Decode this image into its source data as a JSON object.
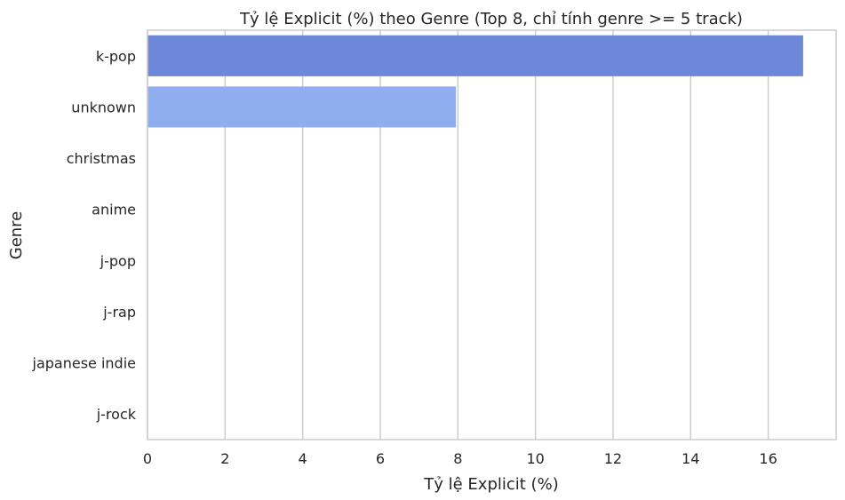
{
  "chart_data": {
    "type": "bar",
    "orientation": "horizontal",
    "title": "Tỷ lệ Explicit (%) theo Genre (Top 8, chỉ tính genre >= 5 track)",
    "xlabel": "Tỷ lệ Explicit (%)",
    "ylabel": "Genre",
    "categories": [
      "k-pop",
      "unknown",
      "christmas",
      "anime",
      "j-pop",
      "j-rap",
      "japanese indie",
      "j-rock"
    ],
    "values": [
      16.9,
      7.95,
      0,
      0,
      0,
      0,
      0,
      0
    ],
    "colors": [
      "#6d87d9",
      "#8eaef0",
      "#b3cdfb",
      "#d0dcf0",
      "#ead4c8",
      "#f5c0a7",
      "#ef9a7a",
      "#e46a52"
    ],
    "xlim": [
      0,
      17.75
    ],
    "xticks": [
      0,
      2,
      4,
      6,
      8,
      10,
      12,
      14,
      16
    ],
    "xtick_labels": [
      "0",
      "2",
      "4",
      "6",
      "8",
      "10",
      "12",
      "14",
      "16"
    ],
    "grid": "vertical"
  }
}
